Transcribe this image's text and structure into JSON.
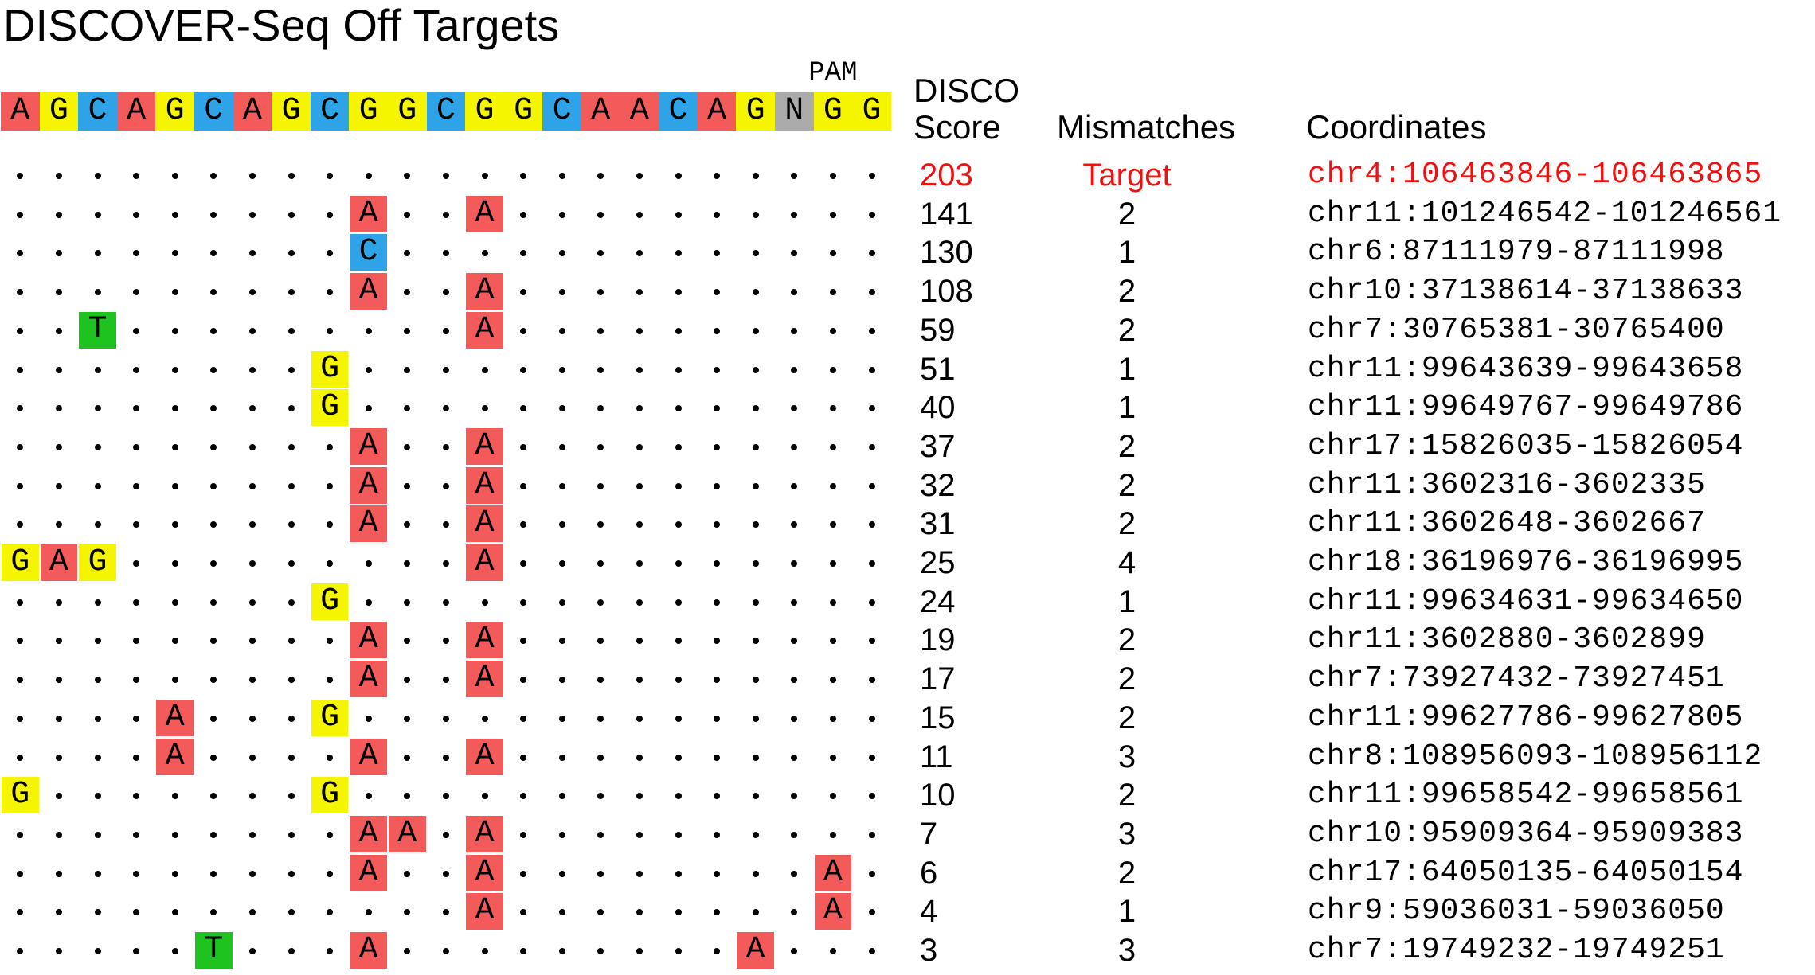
{
  "title": "DISCOVER-Seq Off Targets",
  "pam_label": "PAM",
  "headers": {
    "score_line1": "DISCO",
    "score_line2": "Score",
    "mismatches": "Mismatches",
    "coordinates": "Coordinates"
  },
  "colors": {
    "A": "#f35a5a",
    "C": "#2fa3e8",
    "G": "#f5f500",
    "T": "#1fc31f",
    "N": "#ababab",
    "target_text": "#ee1111",
    "text": "#000000"
  },
  "chart_data": {
    "type": "table",
    "reference_sequence": [
      "A",
      "G",
      "C",
      "A",
      "G",
      "C",
      "A",
      "G",
      "C",
      "G",
      "G",
      "C",
      "G",
      "G",
      "C",
      "A",
      "A",
      "C",
      "A",
      "G",
      "N",
      "G",
      "G"
    ],
    "rows": [
      {
        "score": "203",
        "mismatches": "Target",
        "coordinates": "chr4:106463846-106463865",
        "is_target": true,
        "sub": {}
      },
      {
        "score": "141",
        "mismatches": "2",
        "coordinates": "chr11:101246542-101246561",
        "sub": {
          "9": "A",
          "12": "A"
        }
      },
      {
        "score": "130",
        "mismatches": "1",
        "coordinates": "chr6:87111979-87111998",
        "sub": {
          "9": "C"
        }
      },
      {
        "score": "108",
        "mismatches": "2",
        "coordinates": "chr10:37138614-37138633",
        "sub": {
          "9": "A",
          "12": "A"
        }
      },
      {
        "score": "59",
        "mismatches": "2",
        "coordinates": "chr7:30765381-30765400",
        "sub": {
          "2": "T",
          "12": "A"
        }
      },
      {
        "score": "51",
        "mismatches": "1",
        "coordinates": "chr11:99643639-99643658",
        "sub": {
          "8": "G"
        }
      },
      {
        "score": "40",
        "mismatches": "1",
        "coordinates": "chr11:99649767-99649786",
        "sub": {
          "8": "G"
        }
      },
      {
        "score": "37",
        "mismatches": "2",
        "coordinates": "chr17:15826035-15826054",
        "sub": {
          "9": "A",
          "12": "A"
        }
      },
      {
        "score": "32",
        "mismatches": "2",
        "coordinates": "chr11:3602316-3602335",
        "sub": {
          "9": "A",
          "12": "A"
        }
      },
      {
        "score": "31",
        "mismatches": "2",
        "coordinates": "chr11:3602648-3602667",
        "sub": {
          "9": "A",
          "12": "A"
        }
      },
      {
        "score": "25",
        "mismatches": "4",
        "coordinates": "chr18:36196976-36196995",
        "sub": {
          "0": "G",
          "1": "A",
          "2": "G",
          "12": "A"
        }
      },
      {
        "score": "24",
        "mismatches": "1",
        "coordinates": "chr11:99634631-99634650",
        "sub": {
          "8": "G"
        }
      },
      {
        "score": "19",
        "mismatches": "2",
        "coordinates": "chr11:3602880-3602899",
        "sub": {
          "9": "A",
          "12": "A"
        }
      },
      {
        "score": "17",
        "mismatches": "2",
        "coordinates": "chr7:73927432-73927451",
        "sub": {
          "9": "A",
          "12": "A"
        }
      },
      {
        "score": "15",
        "mismatches": "2",
        "coordinates": "chr11:99627786-99627805",
        "sub": {
          "4": "A",
          "8": "G"
        }
      },
      {
        "score": "11",
        "mismatches": "3",
        "coordinates": "chr8:108956093-108956112",
        "sub": {
          "4": "A",
          "9": "A",
          "12": "A"
        }
      },
      {
        "score": "10",
        "mismatches": "2",
        "coordinates": "chr11:99658542-99658561",
        "sub": {
          "0": "G",
          "8": "G"
        }
      },
      {
        "score": "7",
        "mismatches": "3",
        "coordinates": "chr10:95909364-95909383",
        "sub": {
          "9": "A",
          "10": "A",
          "12": "A"
        }
      },
      {
        "score": "6",
        "mismatches": "2",
        "coordinates": "chr17:64050135-64050154",
        "sub": {
          "9": "A",
          "12": "A",
          "21": "A"
        }
      },
      {
        "score": "4",
        "mismatches": "1",
        "coordinates": "chr9:59036031-59036050",
        "sub": {
          "12": "A",
          "21": "A"
        }
      },
      {
        "score": "3",
        "mismatches": "3",
        "coordinates": "chr7:19749232-19749251",
        "sub": {
          "5": "T",
          "9": "A",
          "19": "A"
        }
      }
    ]
  }
}
